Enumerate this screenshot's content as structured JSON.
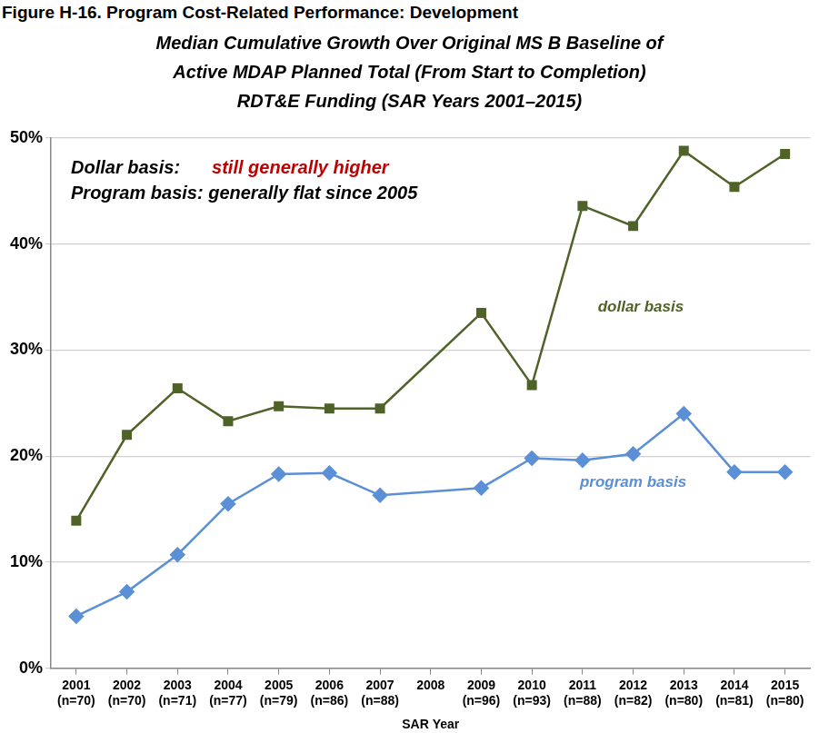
{
  "chart_data": {
    "type": "line",
    "figure_title": "Figure H-16. Program Cost-Related Performance: Development",
    "title": [
      "Median Cumulative Growth Over Original MS B Baseline of",
      "Active MDAP Planned Total (From Start to Completion)",
      "RDT&E Funding (SAR Years 2001–2015)"
    ],
    "x_label": "SAR Year",
    "annotations": [
      "Dollar basis:",
      "still generally higher",
      "Program basis: generally flat since 2005"
    ],
    "categories": [
      [
        "2001",
        "(n=70)"
      ],
      [
        "2002",
        "(n=70)"
      ],
      [
        "2003",
        "(n=71)"
      ],
      [
        "2004",
        "(n=77)"
      ],
      [
        "2005",
        "(n=79)"
      ],
      [
        "2006",
        "(n=86)"
      ],
      [
        "2007",
        "(n=88)"
      ],
      [
        "2008"
      ],
      [
        "2009",
        "(n=96)"
      ],
      [
        "2010",
        "(n=93)"
      ],
      [
        "2011",
        "(n=88)"
      ],
      [
        "2012",
        "(n=82)"
      ],
      [
        "2013",
        "(n=80)"
      ],
      [
        "2014",
        "(n=81)"
      ],
      [
        "2015",
        "(n=80)"
      ]
    ],
    "series": [
      {
        "name": "dollar basis",
        "color": "#4f6228",
        "marker": "square",
        "line_style": "solid",
        "values": [
          13.9,
          22.0,
          26.4,
          23.3,
          24.7,
          24.5,
          24.5,
          null,
          33.5,
          26.7,
          43.6,
          41.7,
          48.8,
          45.4,
          48.5
        ]
      },
      {
        "name": "program basis",
        "color": "#5b8fd6",
        "marker": "diamond",
        "line_style": "solid",
        "values": [
          4.9,
          7.2,
          10.7,
          15.5,
          18.3,
          18.4,
          16.3,
          null,
          17.0,
          19.8,
          19.6,
          20.2,
          24.0,
          18.5,
          18.5
        ]
      }
    ],
    "ylim": [
      0,
      50
    ],
    "yticks": [
      {
        "value": 0,
        "label": "0%"
      },
      {
        "value": 10,
        "label": "10%"
      },
      {
        "value": 20,
        "label": "20%"
      },
      {
        "value": 30,
        "label": "30%"
      },
      {
        "value": 40,
        "label": "40%"
      },
      {
        "value": 50,
        "label": "50%"
      }
    ],
    "grid": true
  }
}
